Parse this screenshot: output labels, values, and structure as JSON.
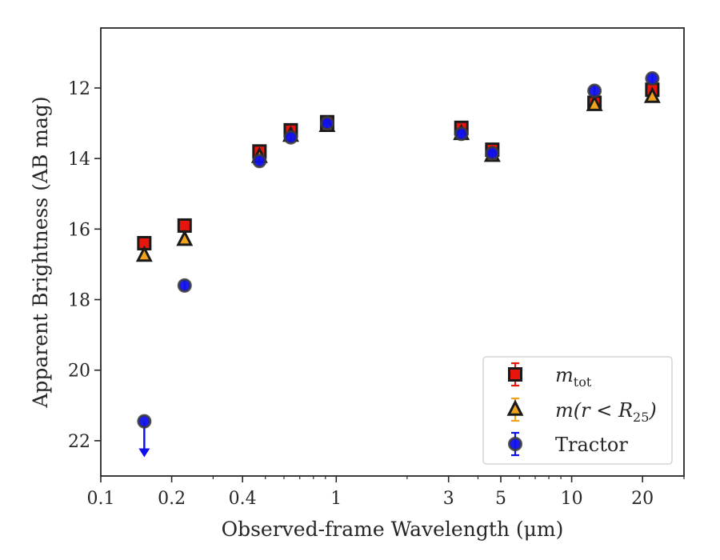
{
  "chart_data": {
    "type": "scatter",
    "title": "",
    "xlabel": "Observed-frame Wavelength (μm)",
    "ylabel": "Apparent Brightness (AB mag)",
    "xscale": "log",
    "xlim": [
      0.1,
      30
    ],
    "ylim": [
      23.0,
      10.3
    ],
    "y_inverted": true,
    "grid": false,
    "legend_position": "lower right",
    "xticks": [
      {
        "value": 0.1,
        "label": "0.1"
      },
      {
        "value": 0.2,
        "label": "0.2"
      },
      {
        "value": 0.4,
        "label": "0.4"
      },
      {
        "value": 1,
        "label": "1"
      },
      {
        "value": 3,
        "label": "3"
      },
      {
        "value": 5,
        "label": "5"
      },
      {
        "value": 10,
        "label": "10"
      },
      {
        "value": 20,
        "label": "20"
      }
    ],
    "yticks": [
      {
        "value": 12,
        "label": "12"
      },
      {
        "value": 14,
        "label": "14"
      },
      {
        "value": 16,
        "label": "16"
      },
      {
        "value": 18,
        "label": "18"
      },
      {
        "value": 20,
        "label": "20"
      },
      {
        "value": 22,
        "label": "22"
      }
    ],
    "series": [
      {
        "name": "m_tot",
        "marker": "square",
        "color": "#e8150d",
        "edge": "#1a1a1a",
        "errcolor": "#e8150d",
        "points": [
          {
            "x": 0.153,
            "y": 16.4
          },
          {
            "x": 0.227,
            "y": 15.9
          },
          {
            "x": 0.472,
            "y": 13.8
          },
          {
            "x": 0.641,
            "y": 13.2
          },
          {
            "x": 0.915,
            "y": 12.97
          },
          {
            "x": 3.4,
            "y": 13.13
          },
          {
            "x": 4.6,
            "y": 13.75
          },
          {
            "x": 12.5,
            "y": 12.42
          },
          {
            "x": 22.0,
            "y": 12.05
          }
        ]
      },
      {
        "name": "m(r < R25)",
        "marker": "triangle",
        "color": "#f0a31c",
        "edge": "#1a1a1a",
        "errcolor": "#f0a31c",
        "points": [
          {
            "x": 0.153,
            "y": 16.75
          },
          {
            "x": 0.227,
            "y": 16.3
          },
          {
            "x": 0.472,
            "y": 13.95
          },
          {
            "x": 0.641,
            "y": 13.35
          },
          {
            "x": 0.915,
            "y": 13.07
          },
          {
            "x": 3.4,
            "y": 13.3
          },
          {
            "x": 4.6,
            "y": 13.92
          },
          {
            "x": 12.5,
            "y": 12.48
          },
          {
            "x": 22.0,
            "y": 12.25
          }
        ]
      },
      {
        "name": "Tractor",
        "marker": "circle",
        "color": "#1010ee",
        "edge": "#3a3a3a",
        "errcolor": "#1010ee",
        "points": [
          {
            "x": 0.153,
            "y": 21.45,
            "upper_limit": true,
            "arrow_to": 22.4
          },
          {
            "x": 0.227,
            "y": 17.6
          },
          {
            "x": 0.472,
            "y": 14.07
          },
          {
            "x": 0.641,
            "y": 13.4
          },
          {
            "x": 0.915,
            "y": 13.0
          },
          {
            "x": 3.4,
            "y": 13.3
          },
          {
            "x": 4.6,
            "y": 13.85
          },
          {
            "x": 12.5,
            "y": 12.08
          },
          {
            "x": 22.0,
            "y": 11.73
          }
        ]
      }
    ],
    "legend": [
      {
        "marker": "square",
        "main": "m",
        "sub": "tot"
      },
      {
        "marker": "triangle",
        "main": "m(r < R",
        "sub": "25",
        "tail": ")"
      },
      {
        "marker": "circle",
        "main": "Tractor"
      }
    ]
  }
}
